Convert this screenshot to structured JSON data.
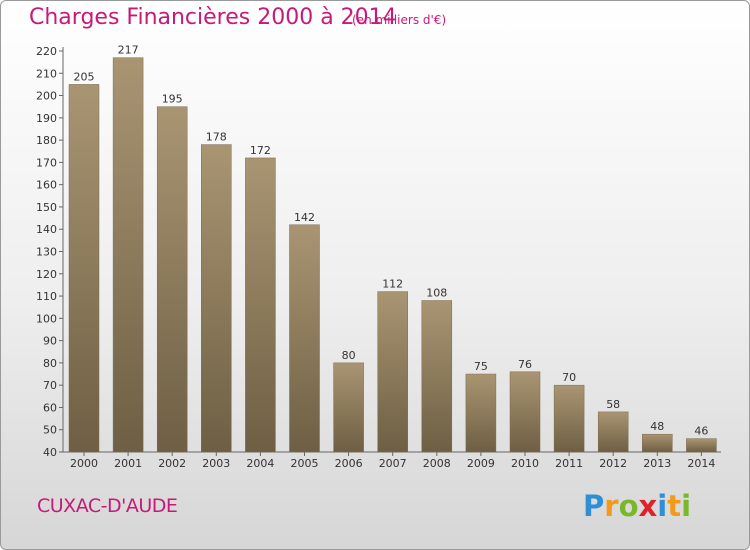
{
  "chart_data": {
    "type": "bar",
    "title": "Charges Financières 2000 à 2014",
    "subtitle": "(en milliers d'€)",
    "categories": [
      "2000",
      "2001",
      "2002",
      "2003",
      "2004",
      "2005",
      "2006",
      "2007",
      "2008",
      "2009",
      "2010",
      "2011",
      "2012",
      "2013",
      "2014"
    ],
    "values": [
      205,
      217,
      195,
      178,
      172,
      142,
      80,
      112,
      108,
      75,
      76,
      70,
      58,
      48,
      46
    ],
    "yticks": [
      40,
      50,
      60,
      70,
      80,
      90,
      100,
      110,
      120,
      130,
      140,
      150,
      160,
      170,
      180,
      190,
      200,
      210,
      220
    ],
    "ylim": [
      40,
      220
    ],
    "xlabel": "",
    "ylabel": "",
    "grid": false,
    "bar_color": "#8f7d5d",
    "title_color": "#c8197a"
  },
  "commune": "CUXAC-D'AUDE",
  "logo": {
    "letters": [
      "P",
      "r",
      "o",
      "x",
      "i",
      "t",
      "i"
    ],
    "colors": [
      "#2e8fd6",
      "#f39a1c",
      "#7ab829",
      "#e0202a",
      "#2e8fd6",
      "#f39a1c",
      "#7ab829"
    ]
  }
}
